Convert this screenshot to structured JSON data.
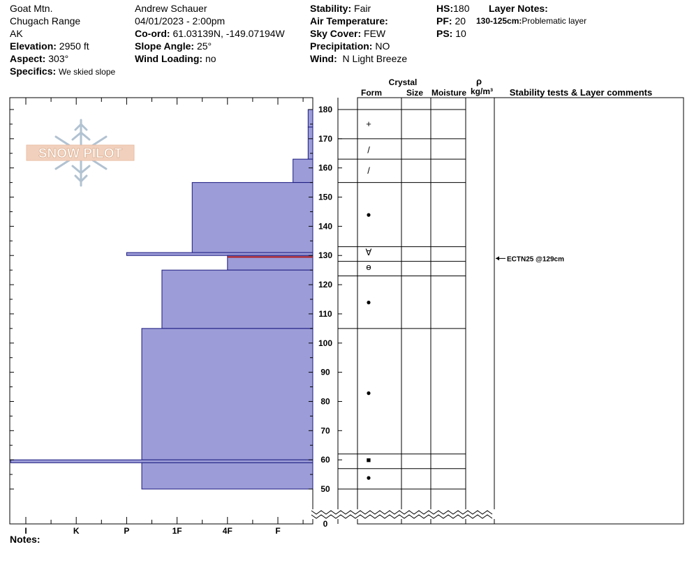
{
  "header": {
    "location": "Goat Mtn.",
    "range": "Chugach Range",
    "state": "AK",
    "elevation_label": "Elevation:",
    "elevation_value": "2950 ft",
    "aspect_label": "Aspect:",
    "aspect_value": "303°",
    "specifics_label": "Specifics:",
    "specifics_value": "We skied slope",
    "observer": "Andrew Schauer",
    "datetime": "04/01/2023 - 2:00pm",
    "coord_label": "Co-ord:",
    "coord_value": "61.03139N, -149.07194W",
    "slope_label": "Slope Angle:",
    "slope_value": "25°",
    "wind_loading_label": "Wind Loading:",
    "wind_loading_value": "no",
    "stability_label": "Stability:",
    "stability_value": "Fair",
    "air_temp_label": "Air Temperature:",
    "sky_label": "Sky Cover:",
    "sky_value": "FEW",
    "precip_label": "Precipitation:",
    "precip_value": "NO",
    "wind_label": "Wind:",
    "wind_value": "N Light Breeze",
    "hs_label": "HS:",
    "hs_value": "180",
    "pf_label": "PF:",
    "pf_value": "20",
    "ps_label": "PS:",
    "ps_value": "10",
    "layer_notes_label": "Layer Notes:",
    "layer_note_range": "130-125cm:",
    "layer_note_text": "Problematic layer"
  },
  "logo_text": "SNOW PILOT",
  "columns": {
    "crystal": "Crystal",
    "form": "Form",
    "size": "Size",
    "moisture": "Moisture",
    "rho": "ρ",
    "density_unit": "kg/m³",
    "stability_comments": "Stability tests & Layer comments"
  },
  "notes_label": "Notes:",
  "colors": {
    "fill": "#9c9cd8",
    "stroke": "#1a1a80",
    "marker": "#b01818"
  },
  "chart_data": {
    "type": "snow-profile",
    "hardness_scale": [
      "I",
      "K",
      "P",
      "1F",
      "4F",
      "F"
    ],
    "depth_ticks": [
      180,
      170,
      160,
      150,
      140,
      130,
      120,
      110,
      100,
      90,
      80,
      70,
      60,
      50,
      0
    ],
    "hardness_layers": [
      {
        "top": 180,
        "bottom": 174,
        "hardness": 6.6
      },
      {
        "top": 174,
        "bottom": 163,
        "hardness": 6.6
      },
      {
        "top": 163,
        "bottom": 155,
        "hardness": 6.3
      },
      {
        "top": 155,
        "bottom": 131,
        "hardness": 4.3
      },
      {
        "top": 131,
        "bottom": 130,
        "hardness": 3.0
      },
      {
        "top": 130,
        "bottom": 125,
        "hardness": 5.0
      },
      {
        "top": 125,
        "bottom": 105,
        "hardness": 3.7
      },
      {
        "top": 105,
        "bottom": 60,
        "hardness": 3.3
      },
      {
        "top": 60,
        "bottom": 59,
        "hardness": 0.7
      },
      {
        "top": 59,
        "bottom": 50,
        "hardness": 3.3
      }
    ],
    "problem_layer_depth": 129.5,
    "grain_layers": [
      {
        "top": 180,
        "bottom": 170,
        "form": "+",
        "symbol_depth": 175
      },
      {
        "top": 170,
        "bottom": 163,
        "form": "/",
        "symbol_depth": 166
      },
      {
        "top": 163,
        "bottom": 155,
        "form": "/",
        "symbol_depth": 159
      },
      {
        "top": 155,
        "bottom": 133,
        "form": "●",
        "symbol_depth": 144
      },
      {
        "top": 133,
        "bottom": 128,
        "form": "∀",
        "symbol_depth": 131
      },
      {
        "top": 128,
        "bottom": 123,
        "form": "ө",
        "symbol_depth": 126
      },
      {
        "top": 123,
        "bottom": 105,
        "form": "●",
        "symbol_depth": 114
      },
      {
        "top": 105,
        "bottom": 62,
        "form": "●",
        "symbol_depth": 83
      },
      {
        "top": 62,
        "bottom": 57,
        "form": "■",
        "symbol_depth": 60
      },
      {
        "top": 57,
        "bottom": 50,
        "form": "●",
        "symbol_depth": 54
      }
    ],
    "stability_tests": [
      {
        "depth": 129,
        "label": "ECTN25 @129cm"
      }
    ]
  }
}
